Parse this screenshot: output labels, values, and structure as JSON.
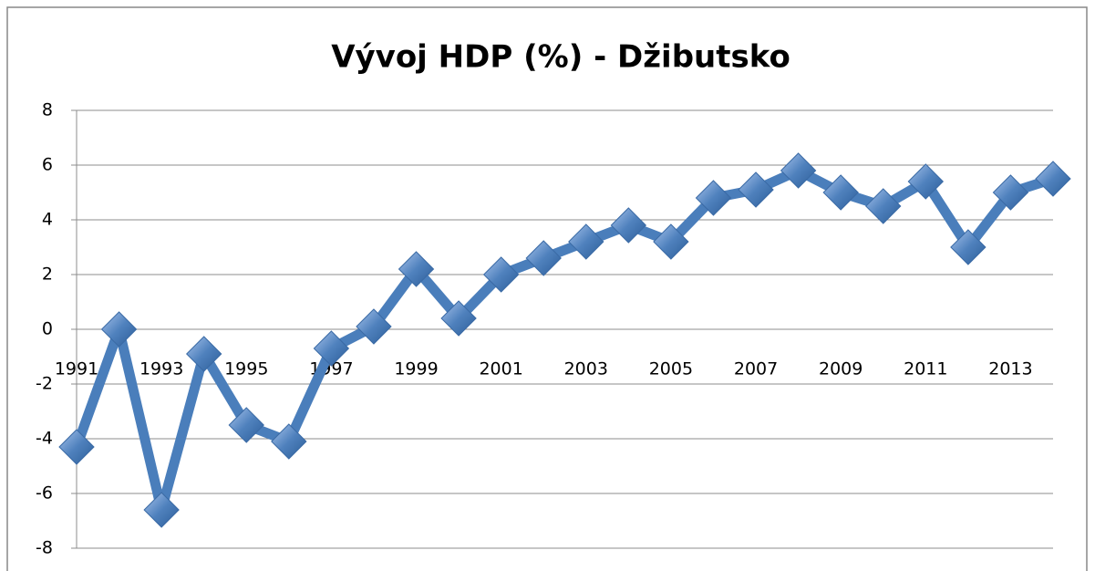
{
  "chart_data": {
    "type": "line",
    "title": "Vývoj HDP (%) - Džibutsko",
    "categories": [
      "1991",
      null,
      "1993",
      null,
      "1995",
      null,
      "1997",
      null,
      "1999",
      null,
      "2001",
      null,
      "2003",
      null,
      "2005",
      null,
      "2007",
      null,
      "2009",
      null,
      "2011",
      null,
      "2013",
      null
    ],
    "series": [
      {
        "name": "HDP",
        "color": "#4a7ebb",
        "values": [
          -4.3,
          0,
          -6.6,
          -0.9,
          -3.5,
          -4.1,
          -0.7,
          0.1,
          2.2,
          0.4,
          2.0,
          2.6,
          3.2,
          3.8,
          3.2,
          4.8,
          5.1,
          5.8,
          5.0,
          4.5,
          5.4,
          3.0,
          5.0,
          5.5
        ]
      }
    ],
    "ylim": [
      -8,
      8
    ],
    "yticks": [
      -8,
      -6,
      -4,
      -2,
      0,
      2,
      4,
      6,
      8
    ],
    "grid": true
  }
}
